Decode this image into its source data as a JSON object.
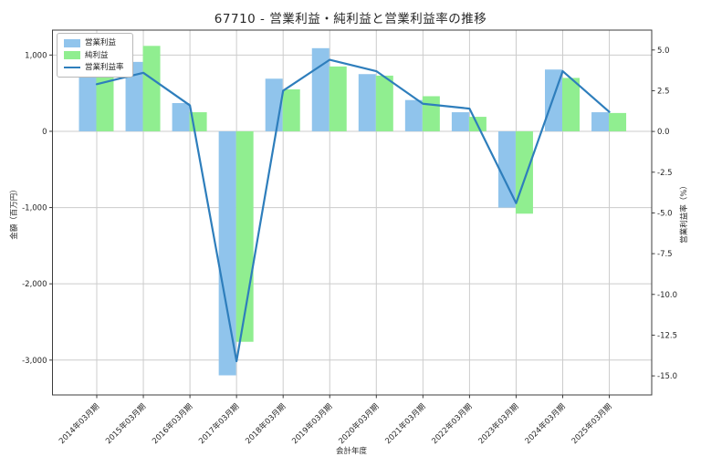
{
  "chart_data": {
    "type": "bar+line",
    "title": "67710 - 営業利益・純利益と営業利益率の推移",
    "categories": [
      "2014年03月期",
      "2015年03月期",
      "2016年03月期",
      "2017年03月期",
      "2018年03月期",
      "2019年03月期",
      "2020年03月期",
      "2021年03月期",
      "2022年03月期",
      "2023年03月期",
      "2024年03月期",
      "2025年03月期"
    ],
    "bar_series": [
      {
        "name": "営業利益",
        "axis": "left",
        "color": "#90c4ec",
        "values": [
          765,
          910,
          370,
          -3200,
          690,
          1090,
          750,
          410,
          250,
          -1000,
          810,
          250
        ]
      },
      {
        "name": "純利益",
        "axis": "left",
        "color": "#90ee90",
        "values": [
          800,
          1120,
          250,
          -2760,
          550,
          850,
          730,
          460,
          190,
          -1080,
          700,
          240
        ]
      }
    ],
    "line_series": [
      {
        "name": "営業利益率",
        "axis": "right",
        "color": "#2e7ebc",
        "values": [
          2.9,
          3.6,
          1.6,
          -14.1,
          2.5,
          4.4,
          3.7,
          1.7,
          1.4,
          -4.4,
          3.7,
          1.2
        ]
      }
    ],
    "xlabel": "会計年度",
    "ylabel_left": "金額（百万円）",
    "ylabel_right": "営業利益率（%）",
    "ylim_left": [
      -3457,
      1327
    ],
    "ylim_right": [
      -16.17,
      6.22
    ],
    "yticks_left": [
      {
        "v": 1000,
        "label": "1,000"
      },
      {
        "v": 0,
        "label": "0"
      },
      {
        "v": -1000,
        "label": "-1,000"
      },
      {
        "v": -2000,
        "label": "-2,000"
      },
      {
        "v": -3000,
        "label": "-3,000"
      }
    ],
    "yticks_right": [
      {
        "v": 5.0,
        "label": "5.0"
      },
      {
        "v": 2.5,
        "label": "2.5"
      },
      {
        "v": 0.0,
        "label": "0.0"
      },
      {
        "v": -2.5,
        "label": "-2.5"
      },
      {
        "v": -5.0,
        "label": "-5.0"
      },
      {
        "v": -7.5,
        "label": "-7.5"
      },
      {
        "v": -10.0,
        "label": "-10.0"
      },
      {
        "v": -12.5,
        "label": "-12.5"
      },
      {
        "v": -15.0,
        "label": "-15.0"
      }
    ],
    "grid": true,
    "legend_position": "upper left",
    "grid_color": "#cccccc",
    "axis_color": "#3c3c3c",
    "tick_label_color": "#262626"
  }
}
